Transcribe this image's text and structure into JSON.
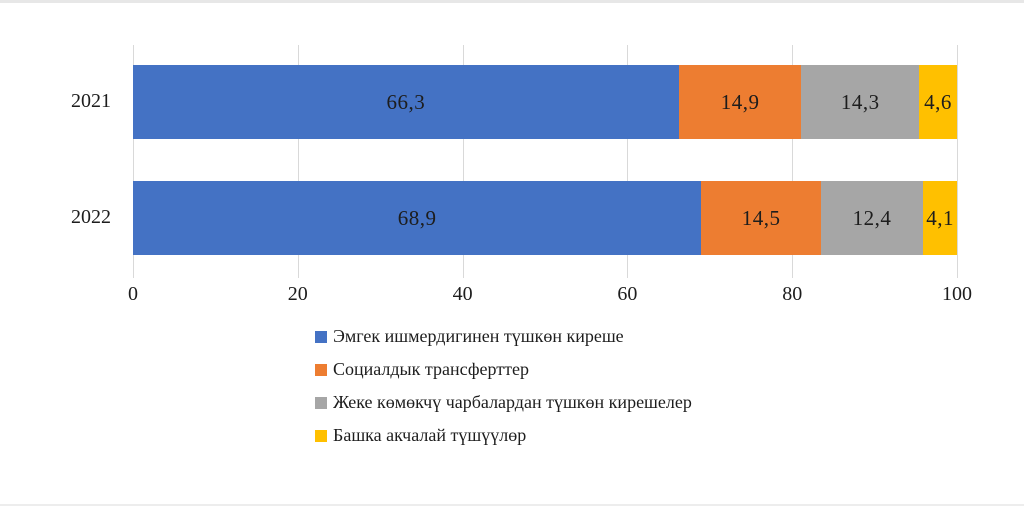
{
  "chart_data": {
    "type": "bar",
    "orientation": "horizontal",
    "stacked": true,
    "title": "",
    "xlabel": "",
    "ylabel": "",
    "categories": [
      "2021",
      "2022"
    ],
    "series": [
      {
        "name": "Эмгек ишмердигинен түшкөн киреше",
        "color": "#4472C4",
        "values": [
          66.3,
          68.9
        ]
      },
      {
        "name": "Социалдык трансферттер",
        "color": "#ED7D31",
        "values": [
          14.9,
          14.5
        ]
      },
      {
        "name": "Жеке көмөкчү чарбалардан түшкөн кирешелер",
        "color": "#A6A6A6",
        "values": [
          14.3,
          12.4
        ]
      },
      {
        "name": "Башка акчалай түшүүлөр",
        "color": "#FFC000",
        "values": [
          4.6,
          4.1
        ]
      }
    ],
    "value_labels": [
      [
        "66,3",
        "14,9",
        "14,3",
        "4,6"
      ],
      [
        "68,9",
        "14,5",
        "12,4",
        "4,1"
      ]
    ],
    "x_axis": {
      "range": [
        0,
        100
      ],
      "ticks": [
        0,
        20,
        40,
        60,
        80,
        100
      ],
      "tick_labels": [
        "0",
        "20",
        "40",
        "60",
        "80",
        "100"
      ]
    },
    "grid": "vertical-only",
    "legend_position": "bottom-left-indented",
    "gridline_color": "#D9D9D9",
    "text_color": "#1D1D1D",
    "background_color": "#FFFFFF"
  }
}
